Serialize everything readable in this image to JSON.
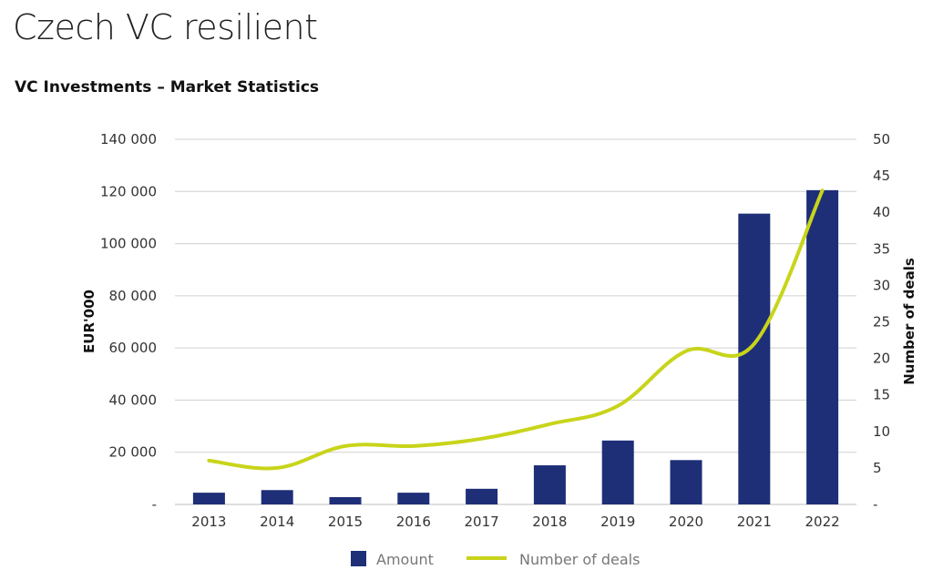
{
  "page_title": "Czech VC resilient",
  "chart_data": {
    "type": "bar",
    "title": "VC Investments – Market Statistics",
    "categories": [
      "2013",
      "2014",
      "2015",
      "2016",
      "2017",
      "2018",
      "2019",
      "2020",
      "2021",
      "2022"
    ],
    "series": [
      {
        "name": "Amount",
        "type": "bar",
        "axis": "left",
        "color": "#1e2f78",
        "values": [
          4500,
          5500,
          2800,
          4500,
          6000,
          15000,
          24500,
          17000,
          111500,
          120500
        ]
      },
      {
        "name": "Number of deals",
        "type": "line",
        "axis": "right",
        "color": "#c8d41a",
        "values": [
          6,
          5,
          8,
          8,
          9,
          11,
          13.5,
          21,
          22,
          43
        ]
      }
    ],
    "ylabel": "EUR'000",
    "y2label": "Number of deals",
    "ylim": [
      0,
      140000
    ],
    "y2lim": [
      0,
      50
    ],
    "yticks": [
      "-",
      "20 000",
      "40 000",
      "60 000",
      "80 000",
      "100 000",
      "120 000",
      "140 000"
    ],
    "y2ticks": [
      "-",
      "5",
      "10",
      "15",
      "20",
      "25",
      "30",
      "35",
      "40",
      "45",
      "50"
    ],
    "grid": true,
    "legend_position": "bottom"
  }
}
